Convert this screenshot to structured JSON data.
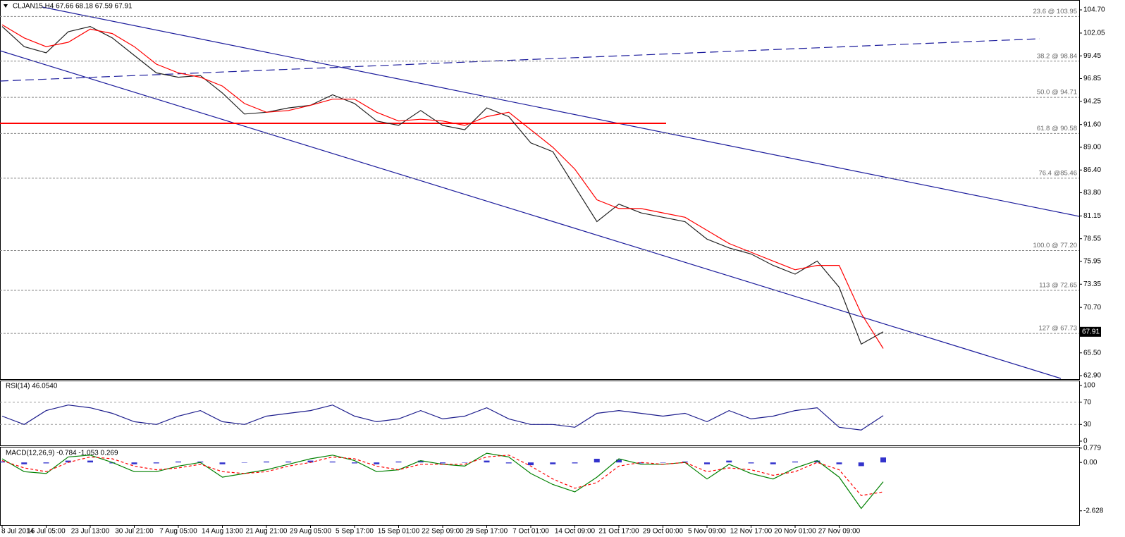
{
  "chart_data": [
    {
      "type": "line",
      "title": "CLJAN15,H4  67.66 68.18 67.59 67.91",
      "last_price": 67.91,
      "categories": [
        "8 Jul 2014",
        null,
        "16 Jul 05:00",
        null,
        "23 Jul 13:00",
        null,
        "30 Jul 21:00",
        null,
        "7 Aug 05:00",
        null,
        "14 Aug 13:00",
        null,
        "21 Aug 21:00",
        null,
        "29 Aug 05:00",
        null,
        "5 Sep 17:00",
        null,
        "15 Sep 01:00",
        null,
        "22 Sep 09:00",
        null,
        "29 Sep 17:00",
        null,
        "7 Oct 01:00",
        null,
        "14 Oct 09:00",
        null,
        "21 Oct 17:00",
        null,
        "29 Oct 00:00",
        null,
        "5 Nov 09:00",
        null,
        "12 Nov 17:00",
        null,
        "20 Nov 01:00",
        null,
        "27 Nov 09:00",
        null,
        null
      ],
      "series": [
        {
          "color": "#222222",
          "values": [
            102.8,
            100.5,
            99.8,
            102.2,
            102.8,
            101.5,
            99.5,
            97.5,
            97.0,
            97.2,
            95.2,
            92.8,
            93.0,
            93.5,
            93.8,
            95.0,
            94.0,
            92.0,
            91.5,
            93.2,
            91.5,
            91.0,
            93.5,
            92.5,
            89.5,
            88.5,
            84.5,
            80.5,
            82.5,
            81.5,
            81.0,
            80.5,
            78.5,
            77.5,
            76.8,
            75.5,
            74.5,
            76.0,
            73.0,
            66.5,
            67.91
          ]
        },
        {
          "color": "#ff0000",
          "values": [
            103,
            101.5,
            100.5,
            101,
            102.5,
            102,
            100.5,
            98.5,
            97.5,
            97,
            96,
            94,
            93,
            93.2,
            93.8,
            94.5,
            94.5,
            93,
            92,
            92.2,
            92,
            91.5,
            92.5,
            93,
            91,
            89,
            86.5,
            83,
            82,
            82,
            81.5,
            81,
            79.5,
            78,
            77,
            76,
            75,
            75.5,
            75.5,
            70,
            66
          ]
        }
      ],
      "ylim": [
        62.5,
        105.83
      ],
      "yticks": [
        {
          "value": 104.7,
          "label": "104.70"
        },
        102.05,
        99.45,
        96.85,
        94.25,
        {
          "value": 91.6,
          "label": "91.60"
        },
        {
          "value": 89,
          "label": "89.00"
        },
        {
          "value": 86.4,
          "label": "86.40"
        },
        {
          "value": 83.8,
          "label": "83.80"
        },
        81.15,
        78.55,
        75.95,
        73.35,
        {
          "value": 70.7,
          "label": "70.70"
        },
        {
          "value": 65.5,
          "label": "65.50"
        },
        {
          "value": 62.9,
          "label": "62.90"
        }
      ],
      "annotations": [
        {
          "label": "23.6 @ 103.95",
          "value": 103.95
        },
        {
          "label": "38.2 @ 98.84",
          "value": 98.84
        },
        {
          "label": "50.0 @ 94.71",
          "value": 94.71
        },
        {
          "label": "61.8 @ 90.58",
          "value": 90.58
        },
        {
          "label": "76.4 @85.46",
          "value": 85.46
        },
        {
          "label": "100.0 @ 77.20",
          "value": 77.2
        },
        {
          "label": "113 @ 72.65",
          "value": 72.65
        },
        {
          "label": "127 @ 67.73",
          "value": 67.73
        }
      ]
    },
    {
      "type": "line",
      "title": "RSI(14) 46.0540",
      "series": [
        {
          "color": "#1c1c8c",
          "values": [
            45,
            30,
            55,
            65,
            60,
            50,
            35,
            30,
            45,
            55,
            35,
            30,
            45,
            50,
            55,
            65,
            45,
            35,
            40,
            55,
            40,
            45,
            60,
            40,
            30,
            30,
            25,
            50,
            55,
            50,
            45,
            50,
            35,
            55,
            40,
            45,
            55,
            60,
            25,
            20,
            46
          ]
        }
      ],
      "ylim": [
        -7.6,
        108.9
      ],
      "yticks": [
        100,
        70,
        30,
        0
      ],
      "levels": [
        70,
        30
      ]
    },
    {
      "type": "line",
      "title": "MACD(12,26,9) -0.784 -1.053 0.269",
      "series": [
        {
          "type": "bar",
          "color": "#3333cc",
          "values": [
            0.05,
            -0.1,
            -0.05,
            0.1,
            0.1,
            -0.05,
            -0.1,
            -0.05,
            0.05,
            0.05,
            -0.1,
            0,
            0.05,
            0.05,
            0.1,
            0.05,
            -0.05,
            -0.1,
            0.05,
            0.1,
            -0.05,
            0,
            0.1,
            -0.05,
            -0.15,
            -0.1,
            -0.05,
            0.2,
            0.15,
            -0.05,
            0,
            0.05,
            -0.1,
            0.1,
            -0.05,
            -0.1,
            0.05,
            0.1,
            -0.1,
            -0.2,
            0.27
          ]
        },
        {
          "color": "#008000",
          "values": [
            0.2,
            -0.5,
            -0.6,
            0.3,
            0.4,
            0.0,
            -0.5,
            -0.5,
            -0.2,
            0.0,
            -0.8,
            -0.6,
            -0.4,
            -0.1,
            0.2,
            0.4,
            0.1,
            -0.5,
            -0.4,
            0.1,
            -0.1,
            -0.2,
            0.5,
            0.3,
            -0.6,
            -1.2,
            -1.6,
            -0.8,
            0.2,
            -0.1,
            -0.1,
            0.0,
            -0.9,
            -0.1,
            -0.6,
            -0.9,
            -0.3,
            0.1,
            -0.8,
            -2.5,
            -1.05
          ]
        },
        {
          "color": "#ff0000",
          "dashed": true,
          "values": [
            0.1,
            -0.3,
            -0.5,
            0.0,
            0.3,
            0.2,
            -0.2,
            -0.4,
            -0.3,
            -0.1,
            -0.5,
            -0.6,
            -0.5,
            -0.2,
            0.0,
            0.3,
            0.2,
            -0.2,
            -0.4,
            -0.1,
            -0.1,
            -0.1,
            0.3,
            0.4,
            -0.2,
            -0.9,
            -1.4,
            -1.1,
            -0.2,
            0.0,
            -0.1,
            0.0,
            -0.5,
            -0.3,
            -0.4,
            -0.7,
            -0.5,
            0.0,
            -0.4,
            -1.8,
            -1.6
          ]
        }
      ],
      "ylim": [
        -3.4,
        0.85
      ],
      "yticks": [
        0.779,
        {
          "value": 0,
          "label": "0.00"
        },
        -2.628
      ]
    }
  ]
}
